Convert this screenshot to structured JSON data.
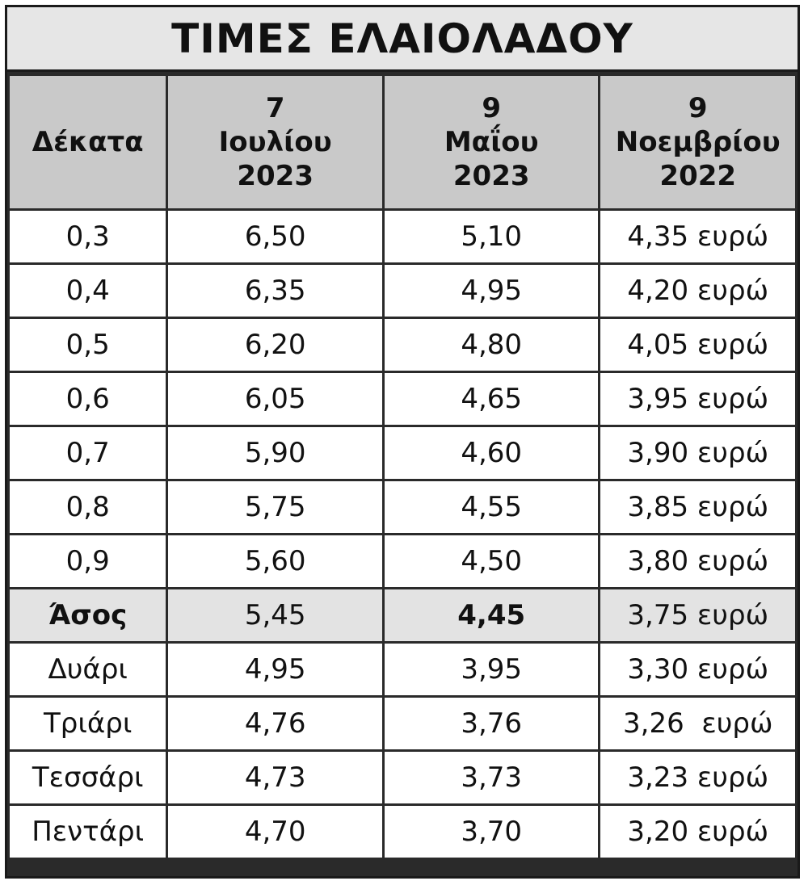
{
  "title": "ΤΙΜΕΣ ΕΛΑΙΟΛΑΔΟΥ",
  "headers": [
    {
      "lines": [
        "Δέκατα"
      ]
    },
    {
      "lines": [
        "7",
        "Ιουλίου",
        "2023"
      ]
    },
    {
      "lines": [
        "9",
        "Μαΐου",
        "2023"
      ]
    },
    {
      "lines": [
        "9",
        "Νοεμβρίου",
        "2022"
      ]
    }
  ],
  "rows": [
    {
      "grade": "0,3",
      "jul_2023": "6,50",
      "may_2023": "5,10",
      "nov_2022": "4,35 ευρώ"
    },
    {
      "grade": "0,4",
      "jul_2023": "6,35",
      "may_2023": "4,95",
      "nov_2022": "4,20 ευρώ"
    },
    {
      "grade": "0,5",
      "jul_2023": "6,20",
      "may_2023": "4,80",
      "nov_2022": "4,05 ευρώ"
    },
    {
      "grade": "0,6",
      "jul_2023": "6,05",
      "may_2023": "4,65",
      "nov_2022": "3,95 ευρώ"
    },
    {
      "grade": "0,7",
      "jul_2023": "5,90",
      "may_2023": "4,60",
      "nov_2022": "3,90 ευρώ"
    },
    {
      "grade": "0,8",
      "jul_2023": "5,75",
      "may_2023": "4,55",
      "nov_2022": "3,85 ευρώ"
    },
    {
      "grade": "0,9",
      "jul_2023": "5,60",
      "may_2023": "4,50",
      "nov_2022": "3,80 ευρώ"
    },
    {
      "grade": "Άσος",
      "jul_2023": "5,45",
      "may_2023": "4,45",
      "nov_2022": "3,75 ευρώ"
    },
    {
      "grade": "Δυάρι",
      "jul_2023": "4,95",
      "may_2023": "3,95",
      "nov_2022": "3,30 ευρώ"
    },
    {
      "grade": "Τριάρι",
      "jul_2023": "4,76",
      "may_2023": "3,76",
      "nov_2022": "3,26  ευρώ"
    },
    {
      "grade": "Τεσσάρι",
      "jul_2023": "4,73",
      "may_2023": "3,73",
      "nov_2022": "3,23 ευρώ"
    },
    {
      "grade": "Πεντάρι",
      "jul_2023": "4,70",
      "may_2023": "3,70",
      "nov_2022": "3,20 ευρώ"
    }
  ],
  "colors": {
    "title_background": "#e6e6e6",
    "header_background": "#c9c9c9",
    "highlight_row_background": "#e3e3e3",
    "grid_lines": "#2a2a2a"
  }
}
